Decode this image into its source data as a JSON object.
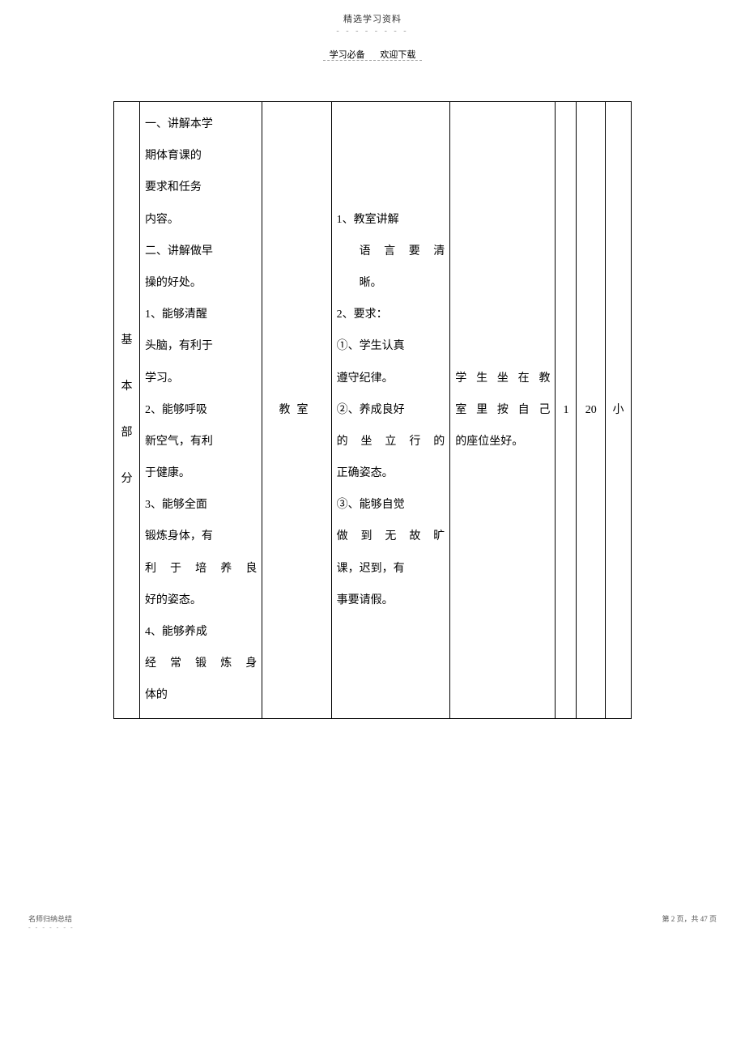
{
  "header": {
    "title": "精选学习资料",
    "dots": "- - - - - - - -",
    "sub_left": "学习必备",
    "sub_right": "欢迎下载"
  },
  "table": {
    "col1": {
      "c1": "基",
      "c2": "本",
      "c3": "部",
      "c4": "分"
    },
    "col2": {
      "l1": "一、讲解本学",
      "l2": "期体育课的",
      "l3": "要求和任务",
      "l4": "内容。",
      "l5": "二、讲解做早",
      "l6": "操的好处。",
      "l7": "1、能够清醒",
      "l8": "头脑，有利于",
      "l9": "学习。",
      "l10": "2、能够呼吸",
      "l11": "新空气，有利",
      "l12": "于健康。",
      "l13": "3、能够全面",
      "l14": "锻炼身体，有",
      "l15": "利于培养良",
      "l16": "好的姿态。",
      "l17": "4、能够养成",
      "l18": "经常锻炼身",
      "l19": "体的"
    },
    "col3": "教室",
    "col4": {
      "l1": "1、教室讲解",
      "l2": "语言要清",
      "l3": "晰。",
      "l4": "2、要求：",
      "l5": "①、学生认真",
      "l6": "遵守纪律。",
      "l7": "②、养成良好",
      "l8": "的坐立行的",
      "l9": "正确姿态。",
      "l10": "③、能够自觉",
      "l11": "做到无故旷",
      "l12": "课，迟到，有",
      "l13": "事要请假。"
    },
    "col5": {
      "l1": "学生坐在教",
      "l2": "室里按自己",
      "l3": "的座位坐好。"
    },
    "col6": "1",
    "col7": "20",
    "col8": "小"
  },
  "footer": {
    "left": "名师归纳总结",
    "left_dots": "- - - - - - -",
    "right": "第 2 页，共 47 页"
  }
}
